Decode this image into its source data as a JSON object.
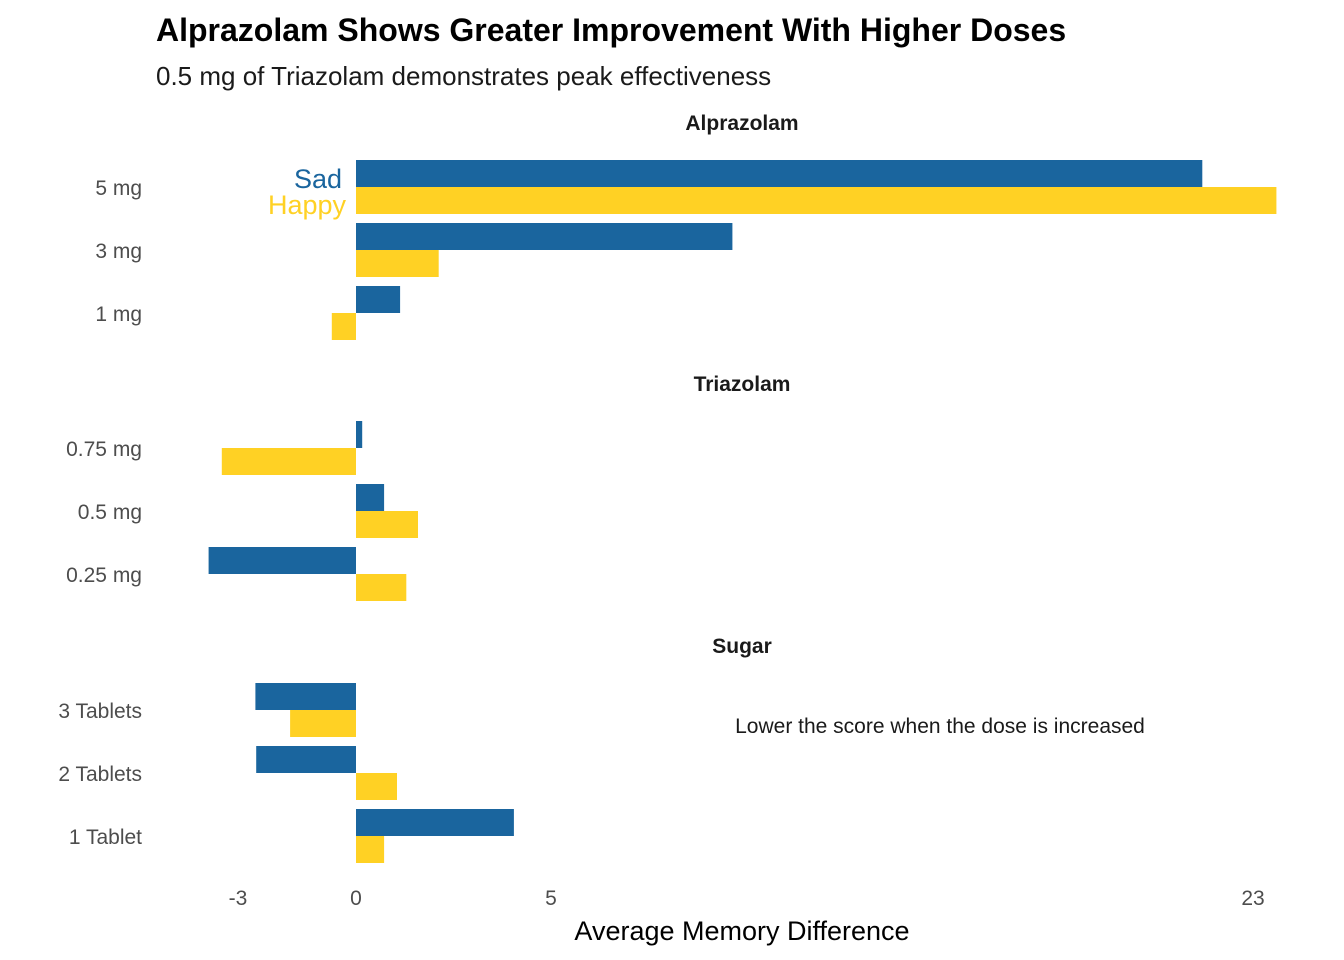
{
  "chart_data": {
    "type": "bar",
    "orientation": "horizontal",
    "title": "Alprazolam Shows Greater Improvement With Higher Doses",
    "subtitle": "0.5 mg of Triazolam demonstrates peak effectiveness",
    "xlabel": "Average Memory Difference",
    "ylabel": "",
    "x_ticks": [
      -3,
      0,
      5,
      23
    ],
    "xlim": [
      -3.8,
      23.6
    ],
    "grid": false,
    "legend": "direct labels next to the top Alprazolam bars",
    "series": [
      {
        "name": "Sad",
        "color": "#1a659e"
      },
      {
        "name": "Happy",
        "color": "#ffd124"
      }
    ],
    "facets": [
      {
        "name": "Alprazolam",
        "categories": [
          "5 mg",
          "3 mg",
          "1 mg"
        ],
        "values": {
          "Sad": [
            21.7,
            9.65,
            1.13
          ],
          "Happy": [
            23.6,
            2.12,
            -0.62
          ]
        }
      },
      {
        "name": "Triazolam",
        "categories": [
          "0.75 mg",
          "0.5 mg",
          "0.25 mg"
        ],
        "values": {
          "Sad": [
            0.16,
            0.72,
            -3.78
          ],
          "Happy": [
            -3.44,
            1.59,
            1.29
          ]
        }
      },
      {
        "name": "Sugar",
        "categories": [
          "3 Tablets",
          "2 Tablets",
          "1 Tablet"
        ],
        "values": {
          "Sad": [
            -2.58,
            -2.56,
            4.05
          ],
          "Happy": [
            -1.69,
            1.05,
            0.72
          ]
        }
      }
    ],
    "annotations": [
      {
        "text": "Lower the score when the dose is increased",
        "facet": "Sugar"
      }
    ]
  }
}
